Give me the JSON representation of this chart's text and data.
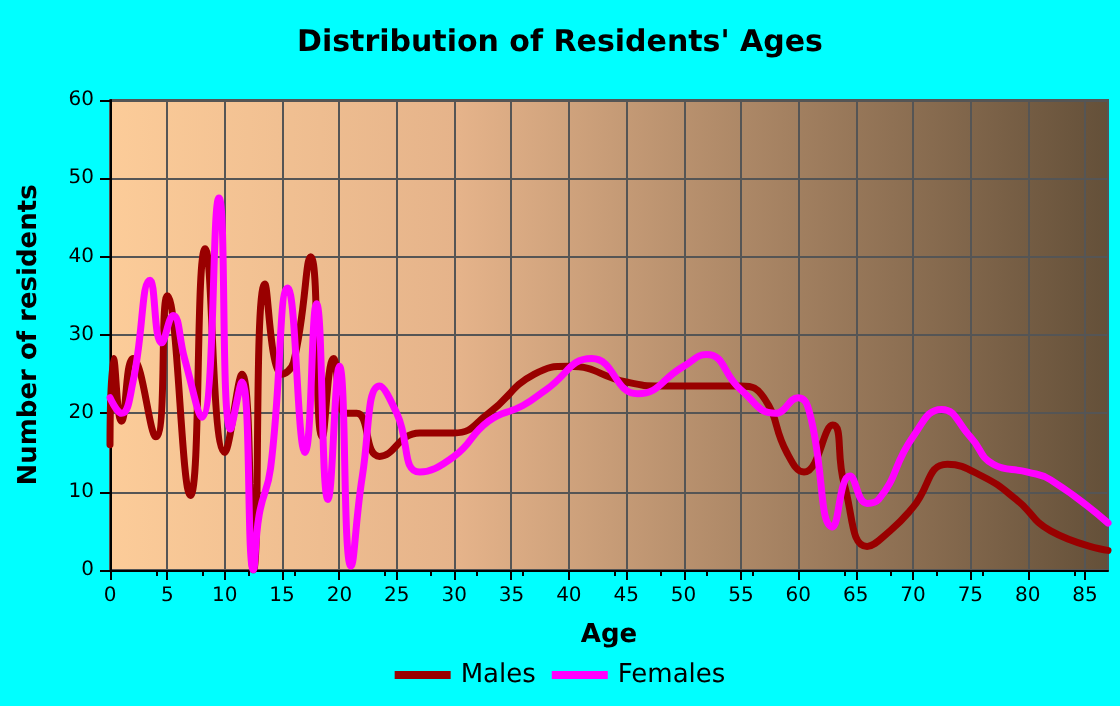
{
  "chart_data": {
    "type": "line",
    "title": "Distribution of Residents' Ages",
    "xlabel": "Age",
    "ylabel": "Number of residents",
    "xlim": [
      0,
      87
    ],
    "xticks": [
      0,
      5,
      10,
      15,
      20,
      25,
      30,
      35,
      40,
      45,
      50,
      55,
      60,
      65,
      70,
      75,
      80,
      85
    ],
    "ylim": [
      0,
      60
    ],
    "yticks": [
      0,
      10,
      20,
      30,
      40,
      50,
      60
    ],
    "grid": true,
    "legend": "bottom",
    "marker": "none",
    "line_style": "solid",
    "series": [
      {
        "name": "Males",
        "color": "#990000",
        "x": [
          0,
          0.3,
          1,
          2,
          4,
          5,
          7,
          8.3,
          10,
          11.5,
          12.5,
          13.5,
          15,
          16,
          17.5,
          18.5,
          19.5,
          20.5,
          21.5,
          23.5,
          27,
          30,
          33,
          37,
          40,
          45,
          48,
          55,
          57,
          59,
          60.5,
          63,
          64,
          66,
          68,
          70,
          73,
          76,
          79,
          82,
          87
        ],
        "values": [
          16,
          27,
          19,
          27,
          17,
          35,
          9.5,
          41,
          15,
          25,
          0,
          36.5,
          25,
          26.5,
          40,
          17,
          27,
          20,
          20,
          14.5,
          17.5,
          17.5,
          20,
          25,
          26,
          24,
          23.5,
          23.5,
          22,
          15,
          12.5,
          18.5,
          11,
          3,
          5,
          8,
          13.5,
          12,
          9,
          5,
          2.5
        ]
      },
      {
        "name": "Females",
        "color": "#ff00ff",
        "x": [
          0,
          1,
          2,
          3.5,
          4.5,
          5.5,
          6.5,
          8,
          9.5,
          10.5,
          11.5,
          12.5,
          13,
          14,
          15.5,
          17,
          18,
          19,
          20,
          21,
          22,
          23.5,
          25,
          27,
          30,
          33,
          36,
          38,
          42,
          46,
          50,
          52,
          55,
          58,
          60,
          61,
          63,
          64.5,
          66,
          67,
          70,
          72.5,
          75,
          77,
          80,
          82,
          87
        ],
        "values": [
          22,
          20,
          24,
          37,
          29,
          32.5,
          27,
          19.5,
          47.5,
          18,
          24,
          0,
          7,
          13,
          36,
          15,
          34,
          9,
          26,
          0.5,
          12,
          23.5,
          20,
          12.5,
          14.5,
          19,
          21,
          23,
          27,
          22.5,
          26,
          27.5,
          23,
          20,
          22,
          20,
          5.5,
          12,
          8.5,
          9,
          17,
          20.5,
          17,
          13.5,
          12.5,
          11.5,
          6
        ]
      }
    ]
  }
}
